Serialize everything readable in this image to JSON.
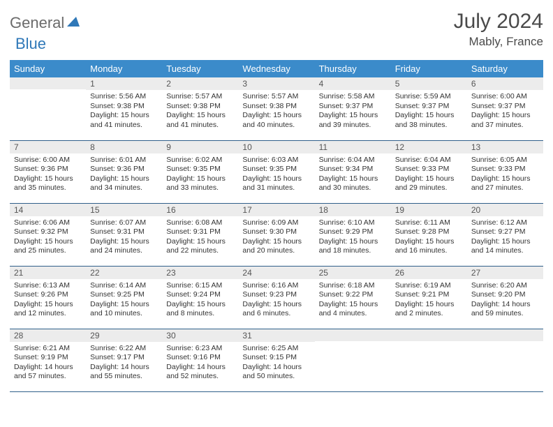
{
  "logo": {
    "part1": "General",
    "part2": "Blue"
  },
  "colors": {
    "header_bg": "#3b8bca",
    "row_divider": "#2f5f8a",
    "daynum_bg": "#ececec",
    "logo_gray": "#6b6b6b",
    "logo_blue": "#2f78b8"
  },
  "title": "July 2024",
  "location": "Mably, France",
  "weekdays": [
    "Sunday",
    "Monday",
    "Tuesday",
    "Wednesday",
    "Thursday",
    "Friday",
    "Saturday"
  ],
  "weeks": [
    [
      {
        "n": "",
        "sr": "",
        "ss": "",
        "dl": ""
      },
      {
        "n": "1",
        "sr": "5:56 AM",
        "ss": "9:38 PM",
        "dl": "15 hours and 41 minutes."
      },
      {
        "n": "2",
        "sr": "5:57 AM",
        "ss": "9:38 PM",
        "dl": "15 hours and 41 minutes."
      },
      {
        "n": "3",
        "sr": "5:57 AM",
        "ss": "9:38 PM",
        "dl": "15 hours and 40 minutes."
      },
      {
        "n": "4",
        "sr": "5:58 AM",
        "ss": "9:37 PM",
        "dl": "15 hours and 39 minutes."
      },
      {
        "n": "5",
        "sr": "5:59 AM",
        "ss": "9:37 PM",
        "dl": "15 hours and 38 minutes."
      },
      {
        "n": "6",
        "sr": "6:00 AM",
        "ss": "9:37 PM",
        "dl": "15 hours and 37 minutes."
      }
    ],
    [
      {
        "n": "7",
        "sr": "6:00 AM",
        "ss": "9:36 PM",
        "dl": "15 hours and 35 minutes."
      },
      {
        "n": "8",
        "sr": "6:01 AM",
        "ss": "9:36 PM",
        "dl": "15 hours and 34 minutes."
      },
      {
        "n": "9",
        "sr": "6:02 AM",
        "ss": "9:35 PM",
        "dl": "15 hours and 33 minutes."
      },
      {
        "n": "10",
        "sr": "6:03 AM",
        "ss": "9:35 PM",
        "dl": "15 hours and 31 minutes."
      },
      {
        "n": "11",
        "sr": "6:04 AM",
        "ss": "9:34 PM",
        "dl": "15 hours and 30 minutes."
      },
      {
        "n": "12",
        "sr": "6:04 AM",
        "ss": "9:33 PM",
        "dl": "15 hours and 29 minutes."
      },
      {
        "n": "13",
        "sr": "6:05 AM",
        "ss": "9:33 PM",
        "dl": "15 hours and 27 minutes."
      }
    ],
    [
      {
        "n": "14",
        "sr": "6:06 AM",
        "ss": "9:32 PM",
        "dl": "15 hours and 25 minutes."
      },
      {
        "n": "15",
        "sr": "6:07 AM",
        "ss": "9:31 PM",
        "dl": "15 hours and 24 minutes."
      },
      {
        "n": "16",
        "sr": "6:08 AM",
        "ss": "9:31 PM",
        "dl": "15 hours and 22 minutes."
      },
      {
        "n": "17",
        "sr": "6:09 AM",
        "ss": "9:30 PM",
        "dl": "15 hours and 20 minutes."
      },
      {
        "n": "18",
        "sr": "6:10 AM",
        "ss": "9:29 PM",
        "dl": "15 hours and 18 minutes."
      },
      {
        "n": "19",
        "sr": "6:11 AM",
        "ss": "9:28 PM",
        "dl": "15 hours and 16 minutes."
      },
      {
        "n": "20",
        "sr": "6:12 AM",
        "ss": "9:27 PM",
        "dl": "15 hours and 14 minutes."
      }
    ],
    [
      {
        "n": "21",
        "sr": "6:13 AM",
        "ss": "9:26 PM",
        "dl": "15 hours and 12 minutes."
      },
      {
        "n": "22",
        "sr": "6:14 AM",
        "ss": "9:25 PM",
        "dl": "15 hours and 10 minutes."
      },
      {
        "n": "23",
        "sr": "6:15 AM",
        "ss": "9:24 PM",
        "dl": "15 hours and 8 minutes."
      },
      {
        "n": "24",
        "sr": "6:16 AM",
        "ss": "9:23 PM",
        "dl": "15 hours and 6 minutes."
      },
      {
        "n": "25",
        "sr": "6:18 AM",
        "ss": "9:22 PM",
        "dl": "15 hours and 4 minutes."
      },
      {
        "n": "26",
        "sr": "6:19 AM",
        "ss": "9:21 PM",
        "dl": "15 hours and 2 minutes."
      },
      {
        "n": "27",
        "sr": "6:20 AM",
        "ss": "9:20 PM",
        "dl": "14 hours and 59 minutes."
      }
    ],
    [
      {
        "n": "28",
        "sr": "6:21 AM",
        "ss": "9:19 PM",
        "dl": "14 hours and 57 minutes."
      },
      {
        "n": "29",
        "sr": "6:22 AM",
        "ss": "9:17 PM",
        "dl": "14 hours and 55 minutes."
      },
      {
        "n": "30",
        "sr": "6:23 AM",
        "ss": "9:16 PM",
        "dl": "14 hours and 52 minutes."
      },
      {
        "n": "31",
        "sr": "6:25 AM",
        "ss": "9:15 PM",
        "dl": "14 hours and 50 minutes."
      },
      {
        "n": "",
        "sr": "",
        "ss": "",
        "dl": ""
      },
      {
        "n": "",
        "sr": "",
        "ss": "",
        "dl": ""
      },
      {
        "n": "",
        "sr": "",
        "ss": "",
        "dl": ""
      }
    ]
  ],
  "labels": {
    "sunrise": "Sunrise: ",
    "sunset": "Sunset: ",
    "daylight": "Daylight: "
  }
}
